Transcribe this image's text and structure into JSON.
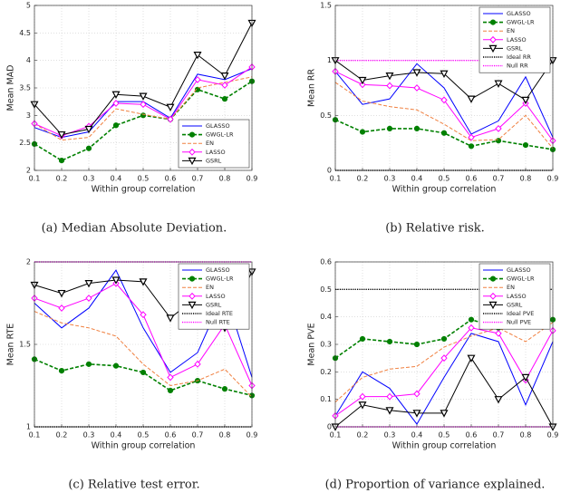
{
  "chart_data": [
    {
      "type": "line",
      "caption": "(a) Median Absolute Deviation.",
      "xlabel": "Within group correlation",
      "ylabel": "Mean MAD",
      "x": [
        0.1,
        0.2,
        0.3,
        0.4,
        0.5,
        0.6,
        0.7,
        0.8,
        0.9
      ],
      "xlim": [
        0.1,
        0.9
      ],
      "xticks": [
        0.1,
        0.2,
        0.3,
        0.4,
        0.5,
        0.6,
        0.7,
        0.8,
        0.9
      ],
      "ylim": [
        2,
        5
      ],
      "yticks": [
        2,
        2.5,
        3,
        3.5,
        4,
        4.5,
        5
      ],
      "grid": true,
      "legend": "lower right",
      "series": [
        {
          "name": "GLASSO",
          "color": "#0000ff",
          "marker": "none",
          "dash": false,
          "values": [
            2.78,
            2.6,
            2.7,
            3.25,
            3.25,
            2.95,
            3.75,
            3.65,
            3.85
          ]
        },
        {
          "name": "GWGL-LR",
          "color": "#008000",
          "marker": "circle",
          "dash": true,
          "values": [
            2.48,
            2.18,
            2.4,
            2.82,
            3.0,
            2.93,
            3.47,
            3.3,
            3.62
          ]
        },
        {
          "name": "EN",
          "color": "#f08040",
          "marker": "none",
          "dash": true,
          "values": [
            2.85,
            2.55,
            2.6,
            3.12,
            3.02,
            2.93,
            3.5,
            3.6,
            3.7
          ]
        },
        {
          "name": "LASSO",
          "color": "#ff00ff",
          "marker": "diamond",
          "dash": false,
          "values": [
            2.85,
            2.63,
            2.8,
            3.22,
            3.2,
            2.93,
            3.65,
            3.55,
            3.88
          ]
        },
        {
          "name": "GSRL",
          "color": "#000000",
          "marker": "triangle",
          "dash": false,
          "values": [
            3.2,
            2.65,
            2.75,
            3.38,
            3.35,
            3.15,
            4.1,
            3.72,
            4.68
          ]
        }
      ],
      "ref_lines": []
    },
    {
      "type": "line",
      "caption": "(b) Relative risk.",
      "xlabel": "Within group correlation",
      "ylabel": "Mean RR",
      "x": [
        0.1,
        0.2,
        0.3,
        0.4,
        0.5,
        0.6,
        0.7,
        0.8,
        0.9
      ],
      "xlim": [
        0.1,
        0.9
      ],
      "xticks": [
        0.1,
        0.2,
        0.3,
        0.4,
        0.5,
        0.6,
        0.7,
        0.8,
        0.9
      ],
      "ylim": [
        0,
        1.5
      ],
      "yticks": [
        0,
        0.5,
        1,
        1.5
      ],
      "grid": true,
      "legend": "upper right",
      "series": [
        {
          "name": "GLASSO",
          "color": "#0000ff",
          "marker": "none",
          "dash": false,
          "values": [
            0.9,
            0.6,
            0.65,
            0.97,
            0.75,
            0.33,
            0.45,
            0.85,
            0.3
          ]
        },
        {
          "name": "GWGL-LR",
          "color": "#008000",
          "marker": "circle",
          "dash": true,
          "values": [
            0.46,
            0.35,
            0.38,
            0.38,
            0.34,
            0.22,
            0.27,
            0.23,
            0.19
          ]
        },
        {
          "name": "EN",
          "color": "#f08040",
          "marker": "none",
          "dash": true,
          "values": [
            0.8,
            0.63,
            0.58,
            0.55,
            0.42,
            0.27,
            0.28,
            0.5,
            0.2
          ]
        },
        {
          "name": "LASSO",
          "color": "#ff00ff",
          "marker": "diamond",
          "dash": false,
          "values": [
            0.9,
            0.78,
            0.77,
            0.75,
            0.64,
            0.3,
            0.38,
            0.61,
            0.27
          ]
        },
        {
          "name": "GSRL",
          "color": "#000000",
          "marker": "triangle",
          "dash": false,
          "values": [
            1.0,
            0.82,
            0.86,
            0.89,
            0.88,
            0.65,
            0.79,
            0.64,
            1.0
          ]
        }
      ],
      "ref_lines": [
        {
          "name": "Ideal RR",
          "color": "#000000",
          "value": 0
        },
        {
          "name": "Null RR",
          "color": "#ff00ff",
          "value": 1
        }
      ]
    },
    {
      "type": "line",
      "caption": "(c) Relative test error.",
      "xlabel": "Within group correlation",
      "ylabel": "Mean RTE",
      "x": [
        0.1,
        0.2,
        0.3,
        0.4,
        0.5,
        0.6,
        0.7,
        0.8,
        0.9
      ],
      "xlim": [
        0.1,
        0.9
      ],
      "xticks": [
        0.1,
        0.2,
        0.3,
        0.4,
        0.5,
        0.6,
        0.7,
        0.8,
        0.9
      ],
      "ylim": [
        1,
        2
      ],
      "yticks": [
        1,
        1.5,
        2
      ],
      "grid": true,
      "legend": "upper right",
      "series": [
        {
          "name": "GLASSO",
          "color": "#0000ff",
          "marker": "none",
          "dash": false,
          "values": [
            1.75,
            1.6,
            1.72,
            1.95,
            1.6,
            1.33,
            1.45,
            1.82,
            1.3
          ]
        },
        {
          "name": "GWGL-LR",
          "color": "#008000",
          "marker": "circle",
          "dash": true,
          "values": [
            1.41,
            1.34,
            1.38,
            1.37,
            1.33,
            1.22,
            1.28,
            1.23,
            1.19
          ]
        },
        {
          "name": "EN",
          "color": "#f08040",
          "marker": "none",
          "dash": true,
          "values": [
            1.7,
            1.63,
            1.6,
            1.55,
            1.38,
            1.25,
            1.28,
            1.35,
            1.18
          ]
        },
        {
          "name": "LASSO",
          "color": "#ff00ff",
          "marker": "diamond",
          "dash": false,
          "values": [
            1.78,
            1.72,
            1.78,
            1.87,
            1.68,
            1.3,
            1.38,
            1.62,
            1.25
          ]
        },
        {
          "name": "GSRL",
          "color": "#000000",
          "marker": "triangle",
          "dash": false,
          "values": [
            1.86,
            1.81,
            1.87,
            1.89,
            1.88,
            1.66,
            1.79,
            1.6,
            1.94
          ]
        }
      ],
      "ref_lines": [
        {
          "name": "Ideal RTE",
          "color": "#000000",
          "value": 1
        },
        {
          "name": "Null RTE",
          "color": "#ff00ff",
          "value": 2
        }
      ]
    },
    {
      "type": "line",
      "caption": "(d) Proportion of variance explained.",
      "xlabel": "Within group correlation",
      "ylabel": "Mean PVE",
      "x": [
        0.1,
        0.2,
        0.3,
        0.4,
        0.5,
        0.6,
        0.7,
        0.8,
        0.9
      ],
      "xlim": [
        0.1,
        0.9
      ],
      "xticks": [
        0.1,
        0.2,
        0.3,
        0.4,
        0.5,
        0.6,
        0.7,
        0.8,
        0.9
      ],
      "ylim": [
        0,
        0.6
      ],
      "yticks": [
        0,
        0.1,
        0.2,
        0.3,
        0.4,
        0.5,
        0.6
      ],
      "grid": true,
      "legend": "upper right",
      "series": [
        {
          "name": "GLASSO",
          "color": "#0000ff",
          "marker": "none",
          "dash": false,
          "values": [
            0.04,
            0.2,
            0.14,
            0.01,
            0.18,
            0.34,
            0.31,
            0.08,
            0.31
          ]
        },
        {
          "name": "GWGL-LR",
          "color": "#008000",
          "marker": "circle",
          "dash": true,
          "values": [
            0.25,
            0.32,
            0.31,
            0.3,
            0.32,
            0.39,
            0.36,
            0.38,
            0.39
          ]
        },
        {
          "name": "EN",
          "color": "#f08040",
          "marker": "none",
          "dash": true,
          "values": [
            0.09,
            0.18,
            0.21,
            0.22,
            0.29,
            0.33,
            0.36,
            0.31,
            0.38
          ]
        },
        {
          "name": "LASSO",
          "color": "#ff00ff",
          "marker": "diamond",
          "dash": false,
          "values": [
            0.04,
            0.11,
            0.11,
            0.12,
            0.25,
            0.36,
            0.34,
            0.17,
            0.35
          ]
        },
        {
          "name": "GSRL",
          "color": "#000000",
          "marker": "triangle",
          "dash": false,
          "values": [
            0.0,
            0.08,
            0.06,
            0.05,
            0.05,
            0.25,
            0.1,
            0.18,
            0.0
          ]
        }
      ],
      "ref_lines": [
        {
          "name": "Ideal PVE",
          "color": "#000000",
          "value": 0.5
        },
        {
          "name": "Null PVE",
          "color": "#ff00ff",
          "value": 0
        }
      ]
    }
  ]
}
